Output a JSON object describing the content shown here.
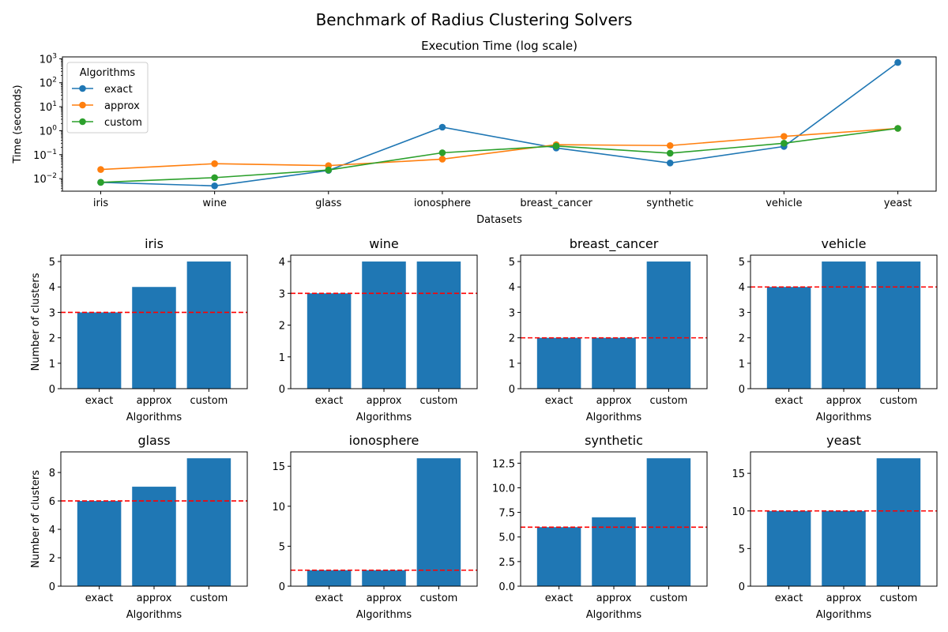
{
  "suptitle": "Benchmark of Radius Clustering Solvers",
  "colors": {
    "exact": "#1f77b4",
    "approx": "#ff7f0e",
    "custom": "#2ca02c",
    "bar": "#1f77b4",
    "ref": "#ff0000"
  },
  "chart_data": [
    {
      "type": "line",
      "title": "Execution Time (log scale)",
      "xlabel": "Datasets",
      "ylabel": "Time (seconds)",
      "yscale": "log",
      "ylim": [
        0.003,
        1200
      ],
      "yticks": [
        0.01,
        0.1,
        1,
        10,
        100,
        1000
      ],
      "ytick_labels": [
        {
          "base": "10",
          "exp": "−2"
        },
        {
          "base": "10",
          "exp": "−1"
        },
        {
          "base": "10",
          "exp": "0"
        },
        {
          "base": "10",
          "exp": "1"
        },
        {
          "base": "10",
          "exp": "2"
        },
        {
          "base": "10",
          "exp": "3"
        }
      ],
      "categories": [
        "iris",
        "wine",
        "glass",
        "ionosphere",
        "breast_cancer",
        "synthetic",
        "vehicle",
        "yeast"
      ],
      "legend": {
        "title": "Algorithms",
        "position": "top-left"
      },
      "grid": false,
      "series": [
        {
          "name": "exact",
          "color": "#1f77b4",
          "values": [
            0.007,
            0.005,
            0.022,
            1.4,
            0.19,
            0.045,
            0.22,
            700
          ]
        },
        {
          "name": "approx",
          "color": "#ff7f0e",
          "values": [
            0.024,
            0.042,
            0.035,
            0.065,
            0.26,
            0.24,
            0.58,
            1.25
          ]
        },
        {
          "name": "custom",
          "color": "#2ca02c",
          "values": [
            0.007,
            0.011,
            0.023,
            0.12,
            0.23,
            0.115,
            0.3,
            1.25
          ]
        }
      ]
    },
    {
      "type": "bar",
      "title": "iris",
      "xlabel": "Algorithms",
      "ylabel": "Number of clusters",
      "categories": [
        "exact",
        "approx",
        "custom"
      ],
      "values": [
        3,
        4,
        5
      ],
      "reference": 3,
      "ylim": [
        0,
        5.25
      ],
      "yticks": [
        0,
        1,
        2,
        3,
        4,
        5
      ],
      "ytick_labels": [
        "0",
        "1",
        "2",
        "3",
        "4",
        "5"
      ]
    },
    {
      "type": "bar",
      "title": "wine",
      "xlabel": "Algorithms",
      "ylabel": "",
      "categories": [
        "exact",
        "approx",
        "custom"
      ],
      "values": [
        3,
        4,
        4
      ],
      "reference": 3,
      "ylim": [
        0,
        4.2
      ],
      "yticks": [
        0,
        1,
        2,
        3,
        4
      ],
      "ytick_labels": [
        "0",
        "1",
        "2",
        "3",
        "4"
      ]
    },
    {
      "type": "bar",
      "title": "breast_cancer",
      "xlabel": "Algorithms",
      "ylabel": "",
      "categories": [
        "exact",
        "approx",
        "custom"
      ],
      "values": [
        2,
        2,
        5
      ],
      "reference": 2,
      "ylim": [
        0,
        5.25
      ],
      "yticks": [
        0,
        1,
        2,
        3,
        4,
        5
      ],
      "ytick_labels": [
        "0",
        "1",
        "2",
        "3",
        "4",
        "5"
      ]
    },
    {
      "type": "bar",
      "title": "vehicle",
      "xlabel": "Algorithms",
      "ylabel": "",
      "categories": [
        "exact",
        "approx",
        "custom"
      ],
      "values": [
        4,
        5,
        5
      ],
      "reference": 4,
      "ylim": [
        0,
        5.25
      ],
      "yticks": [
        0,
        1,
        2,
        3,
        4,
        5
      ],
      "ytick_labels": [
        "0",
        "1",
        "2",
        "3",
        "4",
        "5"
      ]
    },
    {
      "type": "bar",
      "title": "glass",
      "xlabel": "Algorithms",
      "ylabel": "Number of clusters",
      "categories": [
        "exact",
        "approx",
        "custom"
      ],
      "values": [
        6,
        7,
        9
      ],
      "reference": 6,
      "ylim": [
        0,
        9.45
      ],
      "yticks": [
        0,
        2,
        4,
        6,
        8
      ],
      "ytick_labels": [
        "0",
        "2",
        "4",
        "6",
        "8"
      ]
    },
    {
      "type": "bar",
      "title": "ionosphere",
      "xlabel": "Algorithms",
      "ylabel": "",
      "categories": [
        "exact",
        "approx",
        "custom"
      ],
      "values": [
        2,
        2,
        16
      ],
      "reference": 2,
      "ylim": [
        0,
        16.8
      ],
      "yticks": [
        0,
        5,
        10,
        15
      ],
      "ytick_labels": [
        "0",
        "5",
        "10",
        "15"
      ]
    },
    {
      "type": "bar",
      "title": "synthetic",
      "xlabel": "Algorithms",
      "ylabel": "",
      "categories": [
        "exact",
        "approx",
        "custom"
      ],
      "values": [
        6,
        7,
        13
      ],
      "reference": 6,
      "ylim": [
        0,
        13.65
      ],
      "yticks": [
        0,
        2.5,
        5,
        7.5,
        10,
        12.5
      ],
      "ytick_labels": [
        "0.0",
        "2.5",
        "5.0",
        "7.5",
        "10.0",
        "12.5"
      ]
    },
    {
      "type": "bar",
      "title": "yeast",
      "xlabel": "Algorithms",
      "ylabel": "",
      "categories": [
        "exact",
        "approx",
        "custom"
      ],
      "values": [
        10,
        10,
        17
      ],
      "reference": 10,
      "ylim": [
        0,
        17.85
      ],
      "yticks": [
        0,
        5,
        10,
        15
      ],
      "ytick_labels": [
        "0",
        "5",
        "10",
        "15"
      ]
    }
  ]
}
